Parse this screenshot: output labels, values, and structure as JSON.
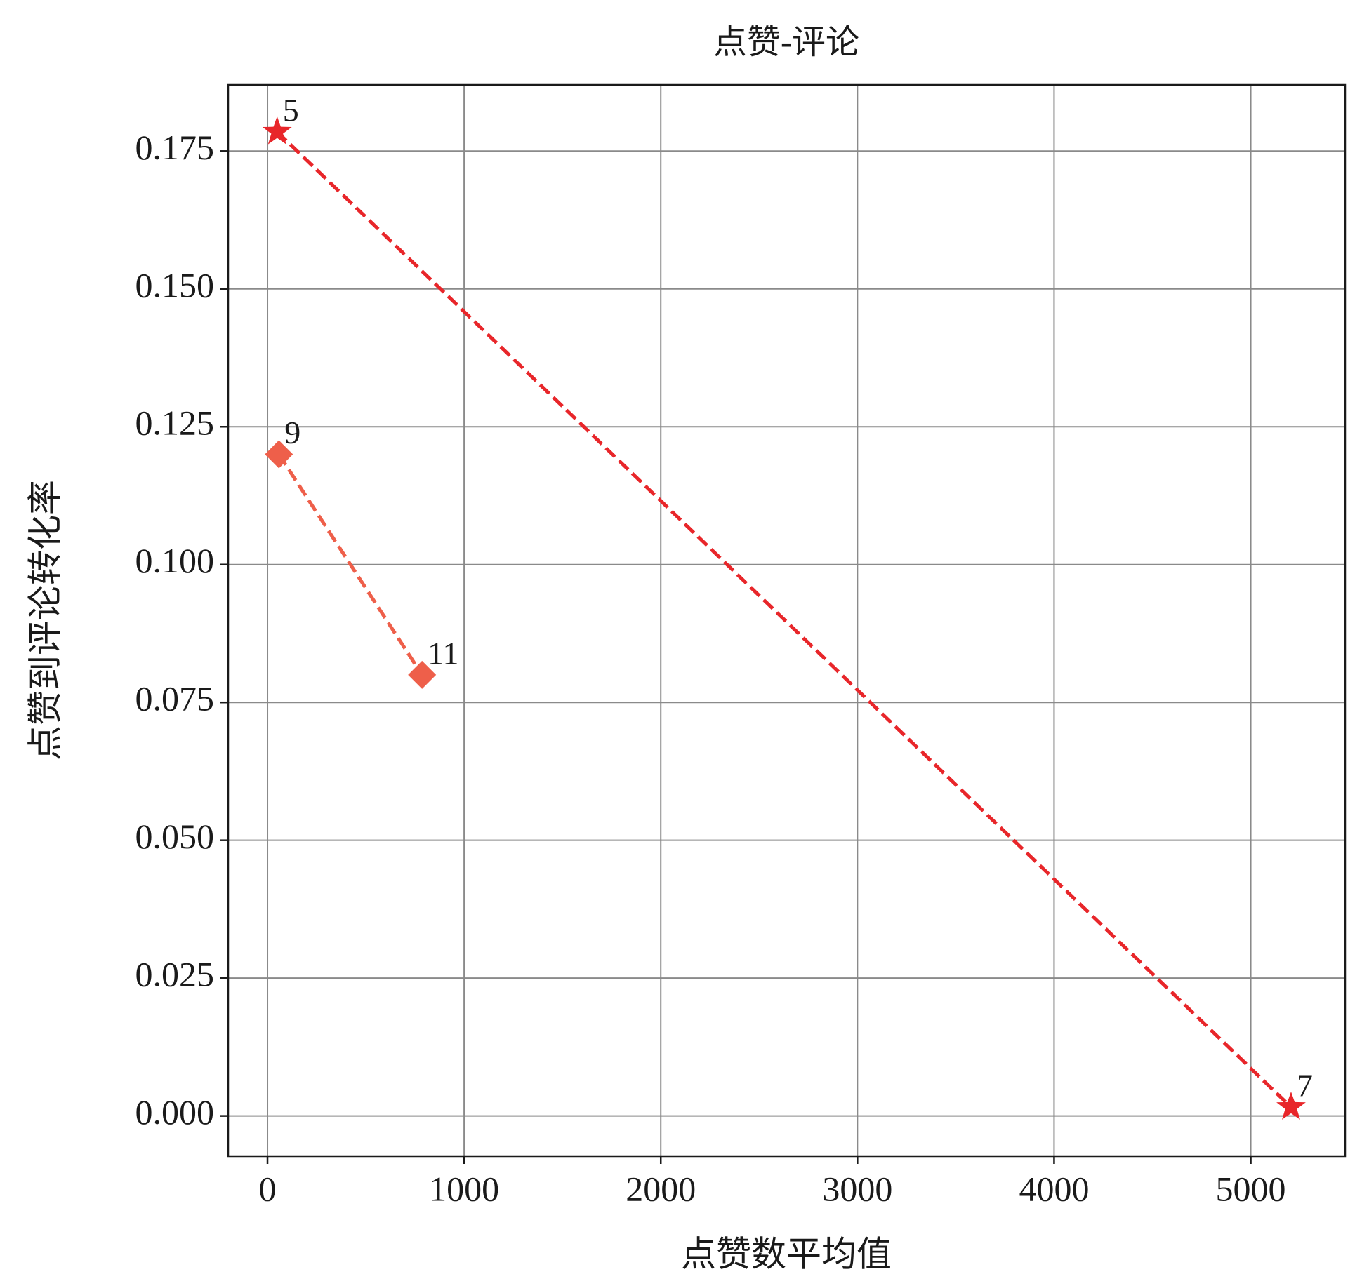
{
  "chart_data": {
    "type": "scatter",
    "title": "点赞-评论",
    "xlabel": "点赞数平均值",
    "ylabel": "点赞到评论转化率",
    "xlim": [
      -200,
      5480
    ],
    "ylim": [
      -0.0073,
      0.187
    ],
    "xticks": [
      0,
      1000,
      2000,
      3000,
      4000,
      5000
    ],
    "yticks": [
      {
        "value": 0,
        "label": "0.000"
      },
      {
        "value": 0.025,
        "label": "0.025"
      },
      {
        "value": 0.05,
        "label": "0.050"
      },
      {
        "value": 0.075,
        "label": "0.075"
      },
      {
        "value": 0.1,
        "label": "0.100"
      },
      {
        "value": 0.125,
        "label": "0.125"
      },
      {
        "value": 0.15,
        "label": "0.150"
      },
      {
        "value": 0.175,
        "label": "0.175"
      }
    ],
    "grid": true,
    "series": [
      {
        "color": "#e8262a",
        "marker": "star",
        "x": [
          49,
          5205
        ],
        "values": [
          0.1785,
          0.0016
        ],
        "labels": [
          "5",
          "7"
        ]
      },
      {
        "color": "#ee5f4a",
        "marker": "diamond",
        "x": [
          58,
          786
        ],
        "values": [
          0.12,
          0.08
        ],
        "labels": [
          "9",
          "11"
        ]
      }
    ]
  }
}
